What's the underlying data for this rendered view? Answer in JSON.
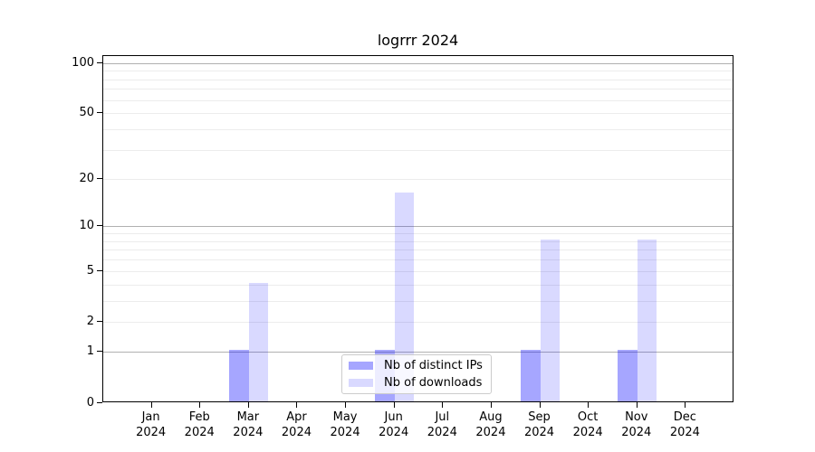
{
  "chart_data": {
    "type": "bar",
    "title": "logrrr 2024",
    "xlabel": "",
    "ylabel": "",
    "categories": [
      "Jan",
      "Feb",
      "Mar",
      "Apr",
      "May",
      "Jun",
      "Jul",
      "Aug",
      "Sep",
      "Oct",
      "Nov",
      "Dec"
    ],
    "category_sublabel": "2024",
    "series": [
      {
        "name": "Nb of distinct IPs",
        "color": "#0000ff",
        "alpha": 0.35,
        "color_on_white": "#a6a6ff",
        "values": [
          0,
          0,
          1,
          0,
          0,
          1,
          0,
          0,
          1,
          0,
          1,
          0
        ]
      },
      {
        "name": "Nb of downloads",
        "color": "#0000ff",
        "alpha": 0.15,
        "color_on_white": "#d9d9ff",
        "values": [
          0,
          0,
          4,
          0,
          0,
          16,
          0,
          0,
          8,
          0,
          8,
          0
        ]
      }
    ],
    "yscale": "log1p",
    "ylim": [
      0,
      110
    ],
    "yticks": [
      0,
      1,
      2,
      5,
      10,
      20,
      50,
      100
    ],
    "gridlines": {
      "major": [
        1,
        10,
        100
      ],
      "minor": [
        2,
        3,
        4,
        5,
        6,
        7,
        8,
        9,
        20,
        30,
        40,
        50,
        60,
        70,
        80,
        90
      ]
    },
    "grid_major_color": "#b0b0b0",
    "grid_minor_color": "#ececec",
    "axis_color": "#000000",
    "legend": {
      "position": "lower center"
    },
    "grid": "on"
  }
}
